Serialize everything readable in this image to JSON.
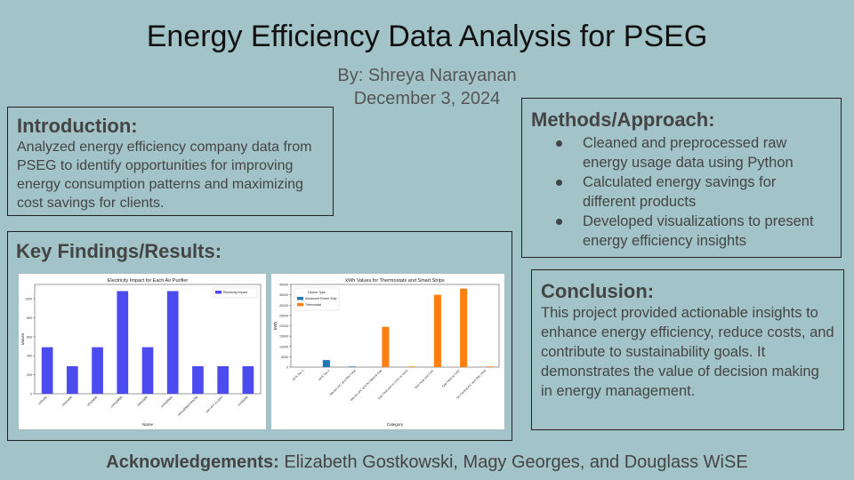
{
  "title": "Energy Efficiency Data Analysis for PSEG",
  "author": "By: Shreya Narayanan",
  "date": "December 3, 2024",
  "introduction": {
    "heading": "Introduction:",
    "body": "Analyzed energy efficiency company data from PSEG to identify opportunities for improving energy consumption patterns and maximizing cost savings for clients."
  },
  "methods": {
    "heading": "Methods/Approach:",
    "items": [
      "Cleaned and preprocessed raw energy usage data using Python",
      "Calculated energy savings for different products",
      "Developed visualizations to present energy efficiency insights"
    ]
  },
  "findings": {
    "heading": "Key Findings/Results:"
  },
  "conclusion": {
    "heading": "Conclusion:",
    "body": "This project provided actionable insights to enhance energy efficiency, reduce costs, and contribute to sustainability goals. It demonstrates the value of decision making in energy management."
  },
  "acknowledgements": {
    "label": "Acknowledgements:",
    "names": " Elizabeth Gostkowski, Magy Georges, and Douglass WiSE"
  },
  "chart_data": [
    {
      "type": "bar",
      "title": "Electricity Impact for Each Air Purifier",
      "xlabel": "Name",
      "ylabel": "Values",
      "categories": [
        "HPA100",
        "HPA200B",
        "HPA300B",
        "HPA100BB",
        "HPA200B",
        "HPA300BB",
        "HPA100BB/HPA200",
        "HM HPT-15 AEH",
        "HPA8388"
      ],
      "series": [
        {
          "name": "Electricity Impact",
          "color": "#4b4bf0",
          "values": [
            490,
            290,
            490,
            1080,
            490,
            1080,
            290,
            290,
            290
          ]
        }
      ],
      "yticks": [
        0,
        200,
        400,
        600,
        800,
        1000
      ],
      "ylim": [
        0,
        1150
      ],
      "legend": "top-right"
    },
    {
      "type": "bar",
      "title": "kWh Values for Thermostats and Smart Strips",
      "xlabel": "Category",
      "ylabel": "kWh",
      "legend_title": "Device Type",
      "categories": [
        "APS Tier 1",
        "APS Tier 2",
        "Electric A/C and Elec Heat",
        "Electric A/C and No Natural Gas",
        "Gas Heat and no CAC or more",
        "Gas Heat and CAC",
        "Gas Heat w/ CAC",
        "No Central A/C and Elec Heat"
      ],
      "series": [
        {
          "name": "Advanced Power Strip",
          "color": "#1f77b4",
          "values": [
            0,
            3400,
            300,
            0,
            0,
            0,
            0,
            0
          ]
        },
        {
          "name": "Thermostat",
          "color": "#ff7f0e",
          "values": [
            0,
            0,
            0,
            19500,
            300,
            35000,
            38000,
            300
          ]
        }
      ],
      "yticks": [
        0,
        5000,
        10000,
        15000,
        20000,
        25000,
        30000,
        35000,
        40000
      ],
      "ylim": [
        0,
        40000
      ],
      "legend": "top-left"
    }
  ]
}
